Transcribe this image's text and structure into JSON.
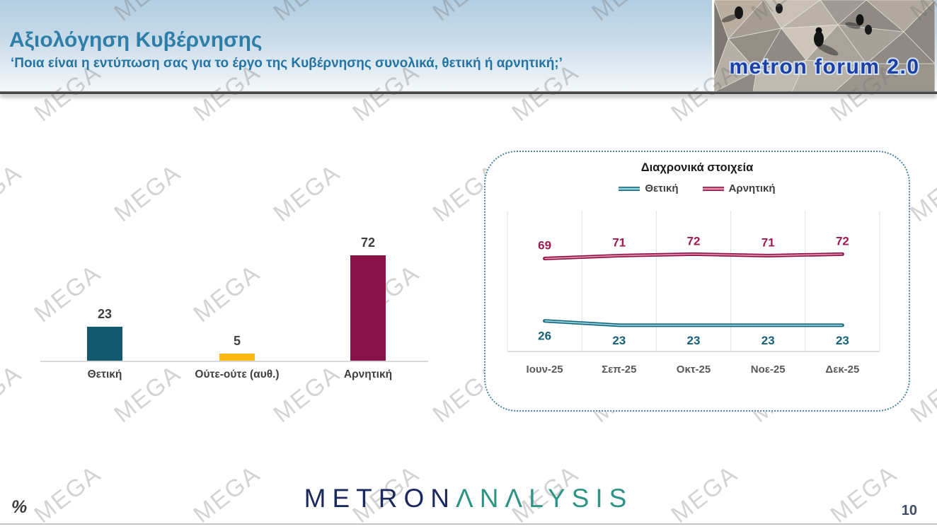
{
  "slide": {
    "title": "Αξιολόγηση Κυβέρνησης",
    "subtitle": "‘Ποια είναι η εντύπωση σας για το έργο της Κυβέρνησης συνολικά, θετική ή αρνητική;’",
    "header_logo_text": "metron forum 2.0",
    "watermark_text": "MEGA",
    "unit_label": "%",
    "page_number": "10",
    "brand": {
      "primary": "METRON",
      "secondary": "ΛNΛLYSIS",
      "primary_color": "#1b2a5e",
      "secondary_color": "#2e9486"
    }
  },
  "chart_data": [
    {
      "type": "bar",
      "title": "",
      "categories": [
        "Θετική",
        "Ούτε-ούτε (αυθ.)",
        "Αρνητική"
      ],
      "values": [
        23,
        5,
        72
      ],
      "colors": [
        "#135a70",
        "#fdb913",
        "#8a1048"
      ],
      "value_label_color": "#3f3f3f",
      "xlabel": "",
      "ylabel": "",
      "ylim": [
        0,
        100
      ],
      "unit": "%",
      "grid": "off"
    },
    {
      "type": "line",
      "title": "Διαχρονικά στοιχεία",
      "categories": [
        "Ιουν-25",
        "Σεπ-25",
        "Οκτ-25",
        "Νοε-25",
        "Δεκ-25"
      ],
      "series": [
        {
          "name": "Θετική",
          "values": [
            26,
            23,
            23,
            23,
            23
          ],
          "color": "#17667c",
          "inner_color": "#8fd0da",
          "label_color": "#186078"
        },
        {
          "name": "Αρνητική",
          "values": [
            69,
            71,
            72,
            71,
            72
          ],
          "color": "#8e1048",
          "inner_color": "#dc8fa6",
          "label_color": "#9e1b51"
        }
      ],
      "legend_position": "top",
      "grid": "vertical-gridlines",
      "xlabel": "",
      "ylabel": "",
      "ylim": [
        0,
        100
      ],
      "tick_label_color": "#595959"
    }
  ]
}
